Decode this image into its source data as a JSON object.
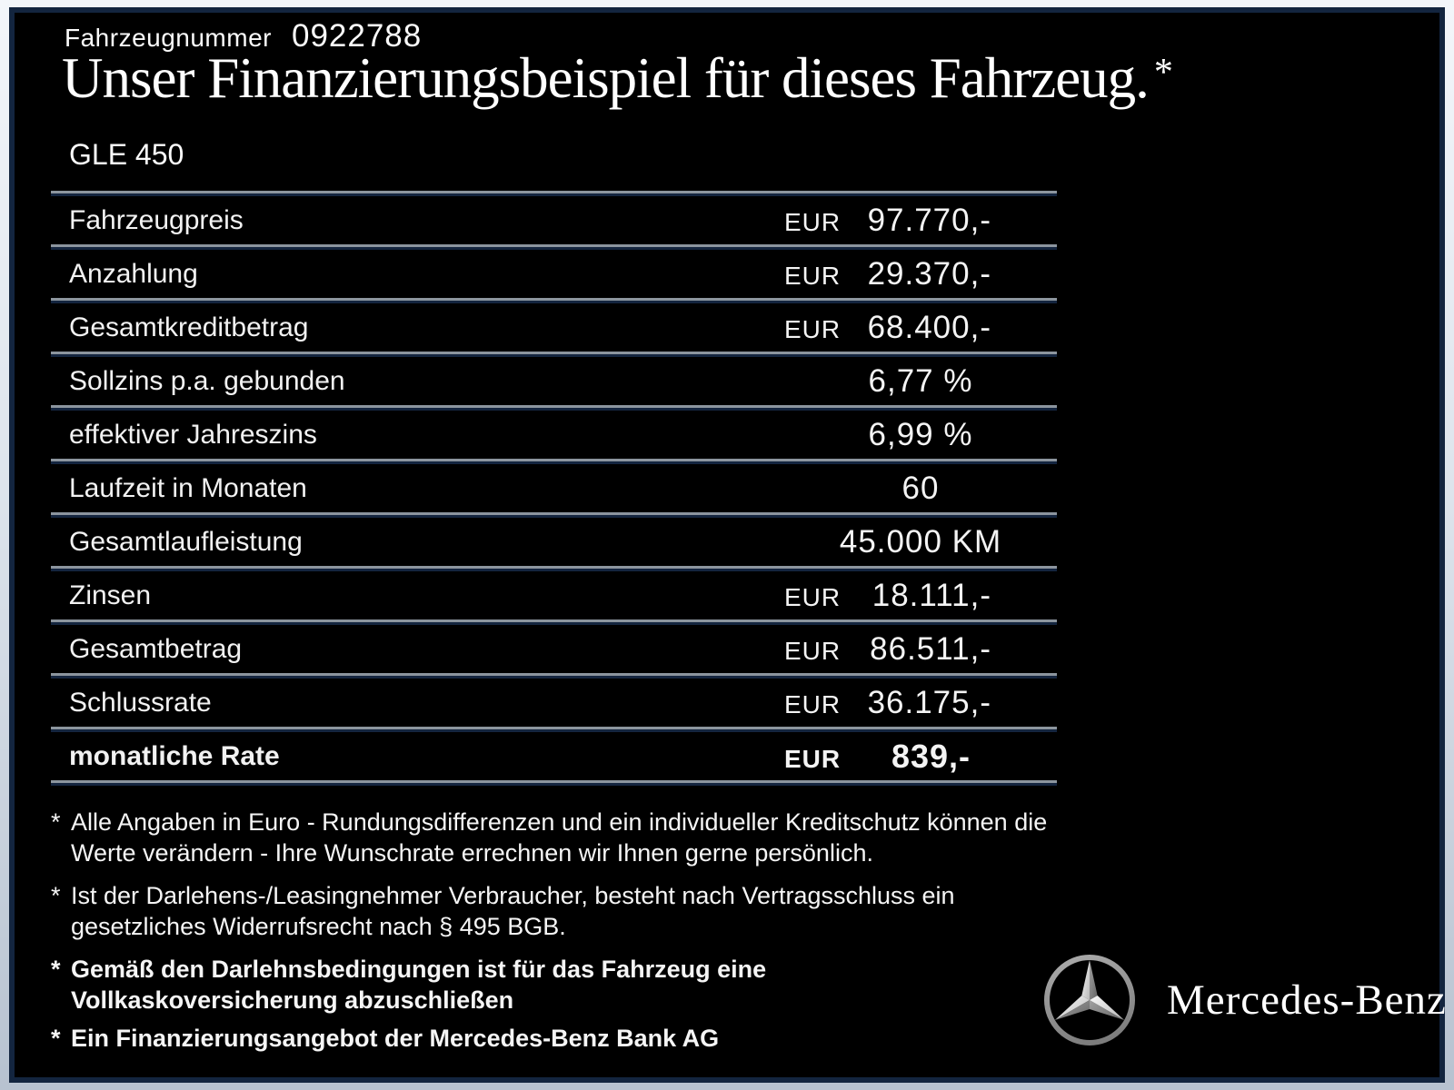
{
  "header": {
    "vehicle_number_label": "Fahrzeugnummer",
    "vehicle_number": "0922788",
    "title": "Unser Finanzierungsbeispiel für dieses Fahrzeug.",
    "title_footnote_marker": "*",
    "model": "GLE 450"
  },
  "table": {
    "rows": [
      {
        "label": "Fahrzeugpreis",
        "currency": "EUR",
        "value": "97.770,-",
        "align": "eur",
        "bold": false
      },
      {
        "label": "Anzahlung",
        "currency": "EUR",
        "value": "29.370,-",
        "align": "eur",
        "bold": false
      },
      {
        "label": "Gesamtkreditbetrag",
        "currency": "EUR",
        "value": "68.400,-",
        "align": "eur",
        "bold": false
      },
      {
        "label": "Sollzins p.a. gebunden",
        "currency": "",
        "value": "6,77 %",
        "align": "center",
        "bold": false
      },
      {
        "label": "effektiver Jahreszins",
        "currency": "",
        "value": "6,99 %",
        "align": "center",
        "bold": false
      },
      {
        "label": "Laufzeit in Monaten",
        "currency": "",
        "value": "60",
        "align": "center",
        "bold": false
      },
      {
        "label": "Gesamtlaufleistung",
        "currency": "",
        "value": "45.000 KM",
        "align": "center",
        "bold": false
      },
      {
        "label": "Zinsen",
        "currency": "EUR",
        "value": "18.111,-",
        "align": "eur",
        "bold": false
      },
      {
        "label": "Gesamtbetrag",
        "currency": "EUR",
        "value": "86.511,-",
        "align": "eur",
        "bold": false
      },
      {
        "label": "Schlussrate",
        "currency": "EUR",
        "value": "36.175,-",
        "align": "eur",
        "bold": false
      },
      {
        "label": "monatliche Rate",
        "currency": "EUR",
        "value": "839,-",
        "align": "eur",
        "bold": true
      }
    ]
  },
  "footnotes": [
    {
      "marker": "*",
      "bold": false,
      "lines": [
        "Alle Angaben in Euro - Rundungsdifferenzen und ein individueller Kreditschutz können die",
        "Werte verändern - Ihre Wunschrate errechnen wir Ihnen gerne persönlich."
      ]
    },
    {
      "marker": "*",
      "bold": false,
      "lines": [
        "Ist der Darlehens-/Leasingnehmer Verbraucher, besteht nach Vertragsschluss ein",
        "gesetzliches Widerrufsrecht nach § 495 BGB."
      ]
    },
    {
      "marker": "*",
      "bold": true,
      "lines": [
        "Gemäß den Darlehnsbedingungen ist für das Fahrzeug eine",
        "Vollkaskoversicherung abzuschließen"
      ]
    },
    {
      "marker": "*",
      "bold": true,
      "lines": [
        "Ein Finanzierungsangebot der Mercedes-Benz Bank AG"
      ]
    }
  ],
  "branding": {
    "logo_icon": "mercedes-star-icon",
    "wordmark": "Mercedes-Benz"
  },
  "colors": {
    "background": "#000000",
    "text": "#f4f4f4",
    "separator_gray": "#8c959e",
    "separator_navy": "#14253f",
    "frame_border": "#13253f",
    "frame_outer_top": "#f3f6fa",
    "frame_outer_bottom": "#b7c2d0"
  }
}
